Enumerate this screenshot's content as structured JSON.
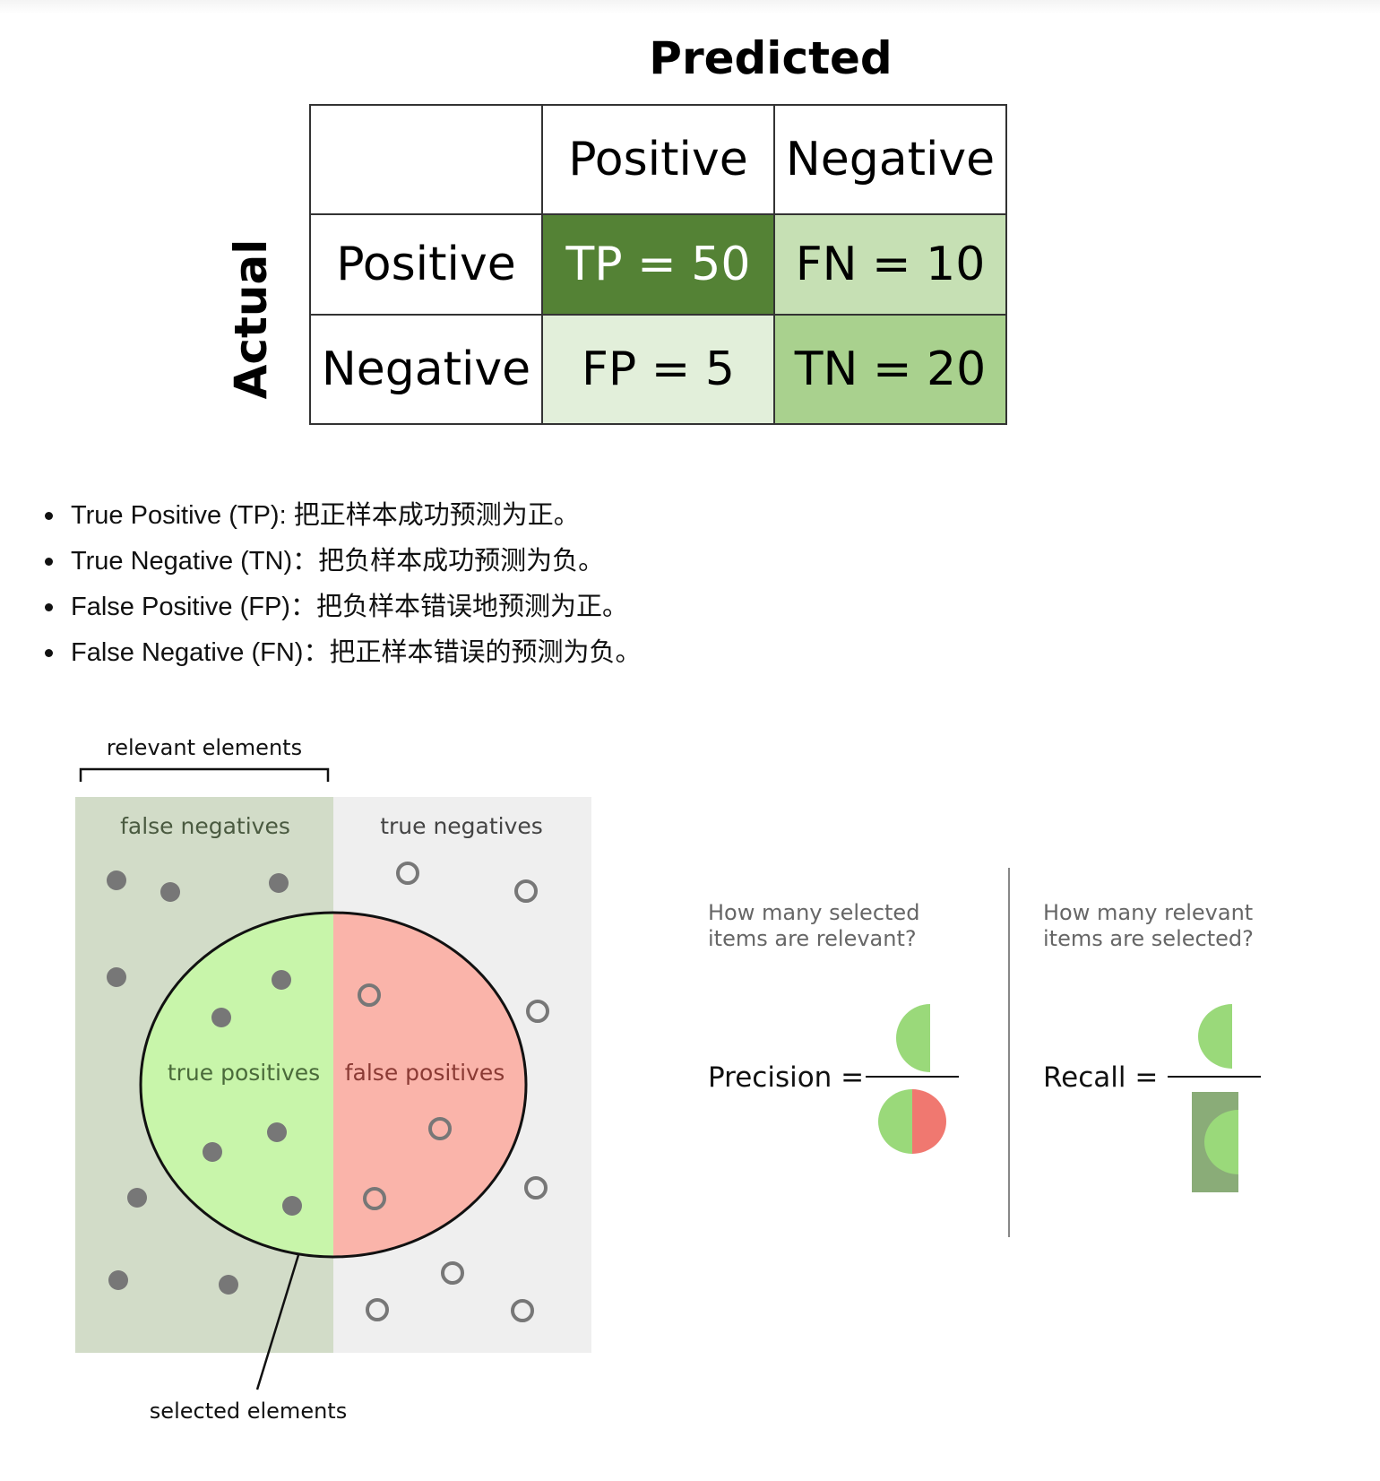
{
  "confusion_matrix": {
    "title": "Predicted",
    "side_label": "Actual",
    "col_headers": [
      "Positive",
      "Negative"
    ],
    "rows": [
      {
        "header": "Positive",
        "cells": [
          "TP = 50",
          "FN = 10"
        ]
      },
      {
        "header": "Negative",
        "cells": [
          "FP = 5",
          "TN = 20"
        ]
      }
    ],
    "colors": {
      "tp": "#548235",
      "fn": "#c6e0b4",
      "fp": "#e2efda",
      "tn": "#a9d18e"
    }
  },
  "definitions": [
    "True Positive (TP): 把正样本成功预测为正。",
    "True Negative (TN)：把负样本成功预测为负。",
    "False Positive (FP)：把负样本错误地预测为正。",
    "False Negative (FN)：把正样本错误的预测为负。"
  ],
  "venn": {
    "relevant_label": "relevant elements",
    "false_negatives": "false negatives",
    "true_negatives": "true negatives",
    "true_positives": "true positives",
    "false_positives": "false positives",
    "selected_label": "selected elements",
    "colors": {
      "relevant_bg": "#d2dcc8",
      "irrelevant_bg": "#efefef",
      "tp": "#c8f5aa",
      "fp": "#fab4aa",
      "dot": "#777777"
    }
  },
  "formulas": {
    "precision_question": [
      "How many selected",
      "items are relevant?"
    ],
    "recall_question": [
      "How many relevant",
      "items are selected?"
    ],
    "precision_label": "Precision =",
    "recall_label": "Recall =",
    "colors": {
      "green": "#9ad97a",
      "red": "#f07870",
      "dark_green": "#8aac78"
    }
  }
}
